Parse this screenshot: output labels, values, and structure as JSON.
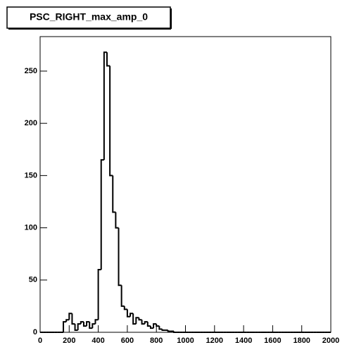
{
  "chart_data": {
    "type": "histogram",
    "title": "PSC_RIGHT_max_amp_0",
    "bins": [
      0,
      20,
      40,
      60,
      80,
      100,
      120,
      140,
      160,
      180,
      200,
      220,
      240,
      260,
      280,
      300,
      320,
      340,
      360,
      380,
      400,
      420,
      440,
      460,
      480,
      500,
      520,
      540,
      560,
      580,
      600,
      620,
      640,
      660,
      680,
      700,
      720,
      740,
      760,
      780,
      800,
      820,
      840,
      860,
      880,
      900,
      920,
      940,
      960,
      980,
      1000,
      1020,
      1040,
      1060,
      1080,
      1100,
      1120,
      1140,
      1160,
      1180,
      1200,
      1220,
      1240,
      1260,
      1280,
      1300,
      1320,
      1340,
      1360,
      1380,
      1400,
      1420,
      1440,
      1460,
      1480,
      1500,
      1520,
      1540,
      1560,
      1580,
      1600,
      1620,
      1640,
      1660,
      1680,
      1700,
      1720,
      1740,
      1760,
      1780,
      1800,
      1820,
      1840,
      1860,
      1880,
      1900,
      1920,
      1940,
      1960,
      1980,
      2000
    ],
    "values": [
      0,
      0,
      0,
      0,
      0,
      0,
      0,
      0,
      10,
      12,
      18,
      8,
      2,
      8,
      10,
      6,
      10,
      4,
      8,
      12,
      60,
      165,
      268,
      255,
      150,
      115,
      100,
      45,
      25,
      22,
      15,
      18,
      8,
      14,
      12,
      8,
      10,
      6,
      4,
      8,
      6,
      3,
      2,
      2,
      1,
      1,
      0,
      0,
      0,
      0,
      0,
      0,
      0,
      0,
      0,
      0,
      0,
      0,
      0,
      0,
      0,
      0,
      0,
      0,
      0,
      0,
      0,
      0,
      0,
      0,
      0,
      0,
      0,
      0,
      0,
      0,
      0,
      0,
      0,
      0,
      0,
      0,
      0,
      0,
      0,
      0,
      0,
      0,
      0,
      0,
      0,
      0,
      0,
      0,
      0,
      0,
      0,
      0,
      0,
      0
    ],
    "color": "#000000",
    "xlim": [
      0,
      2000
    ],
    "xticks": [
      0,
      200,
      400,
      600,
      800,
      1000,
      1200,
      1400,
      1600,
      1800,
      2000
    ],
    "ylim": [
      0,
      283
    ],
    "yticks": [
      0,
      50,
      100,
      150,
      200,
      250
    ]
  }
}
